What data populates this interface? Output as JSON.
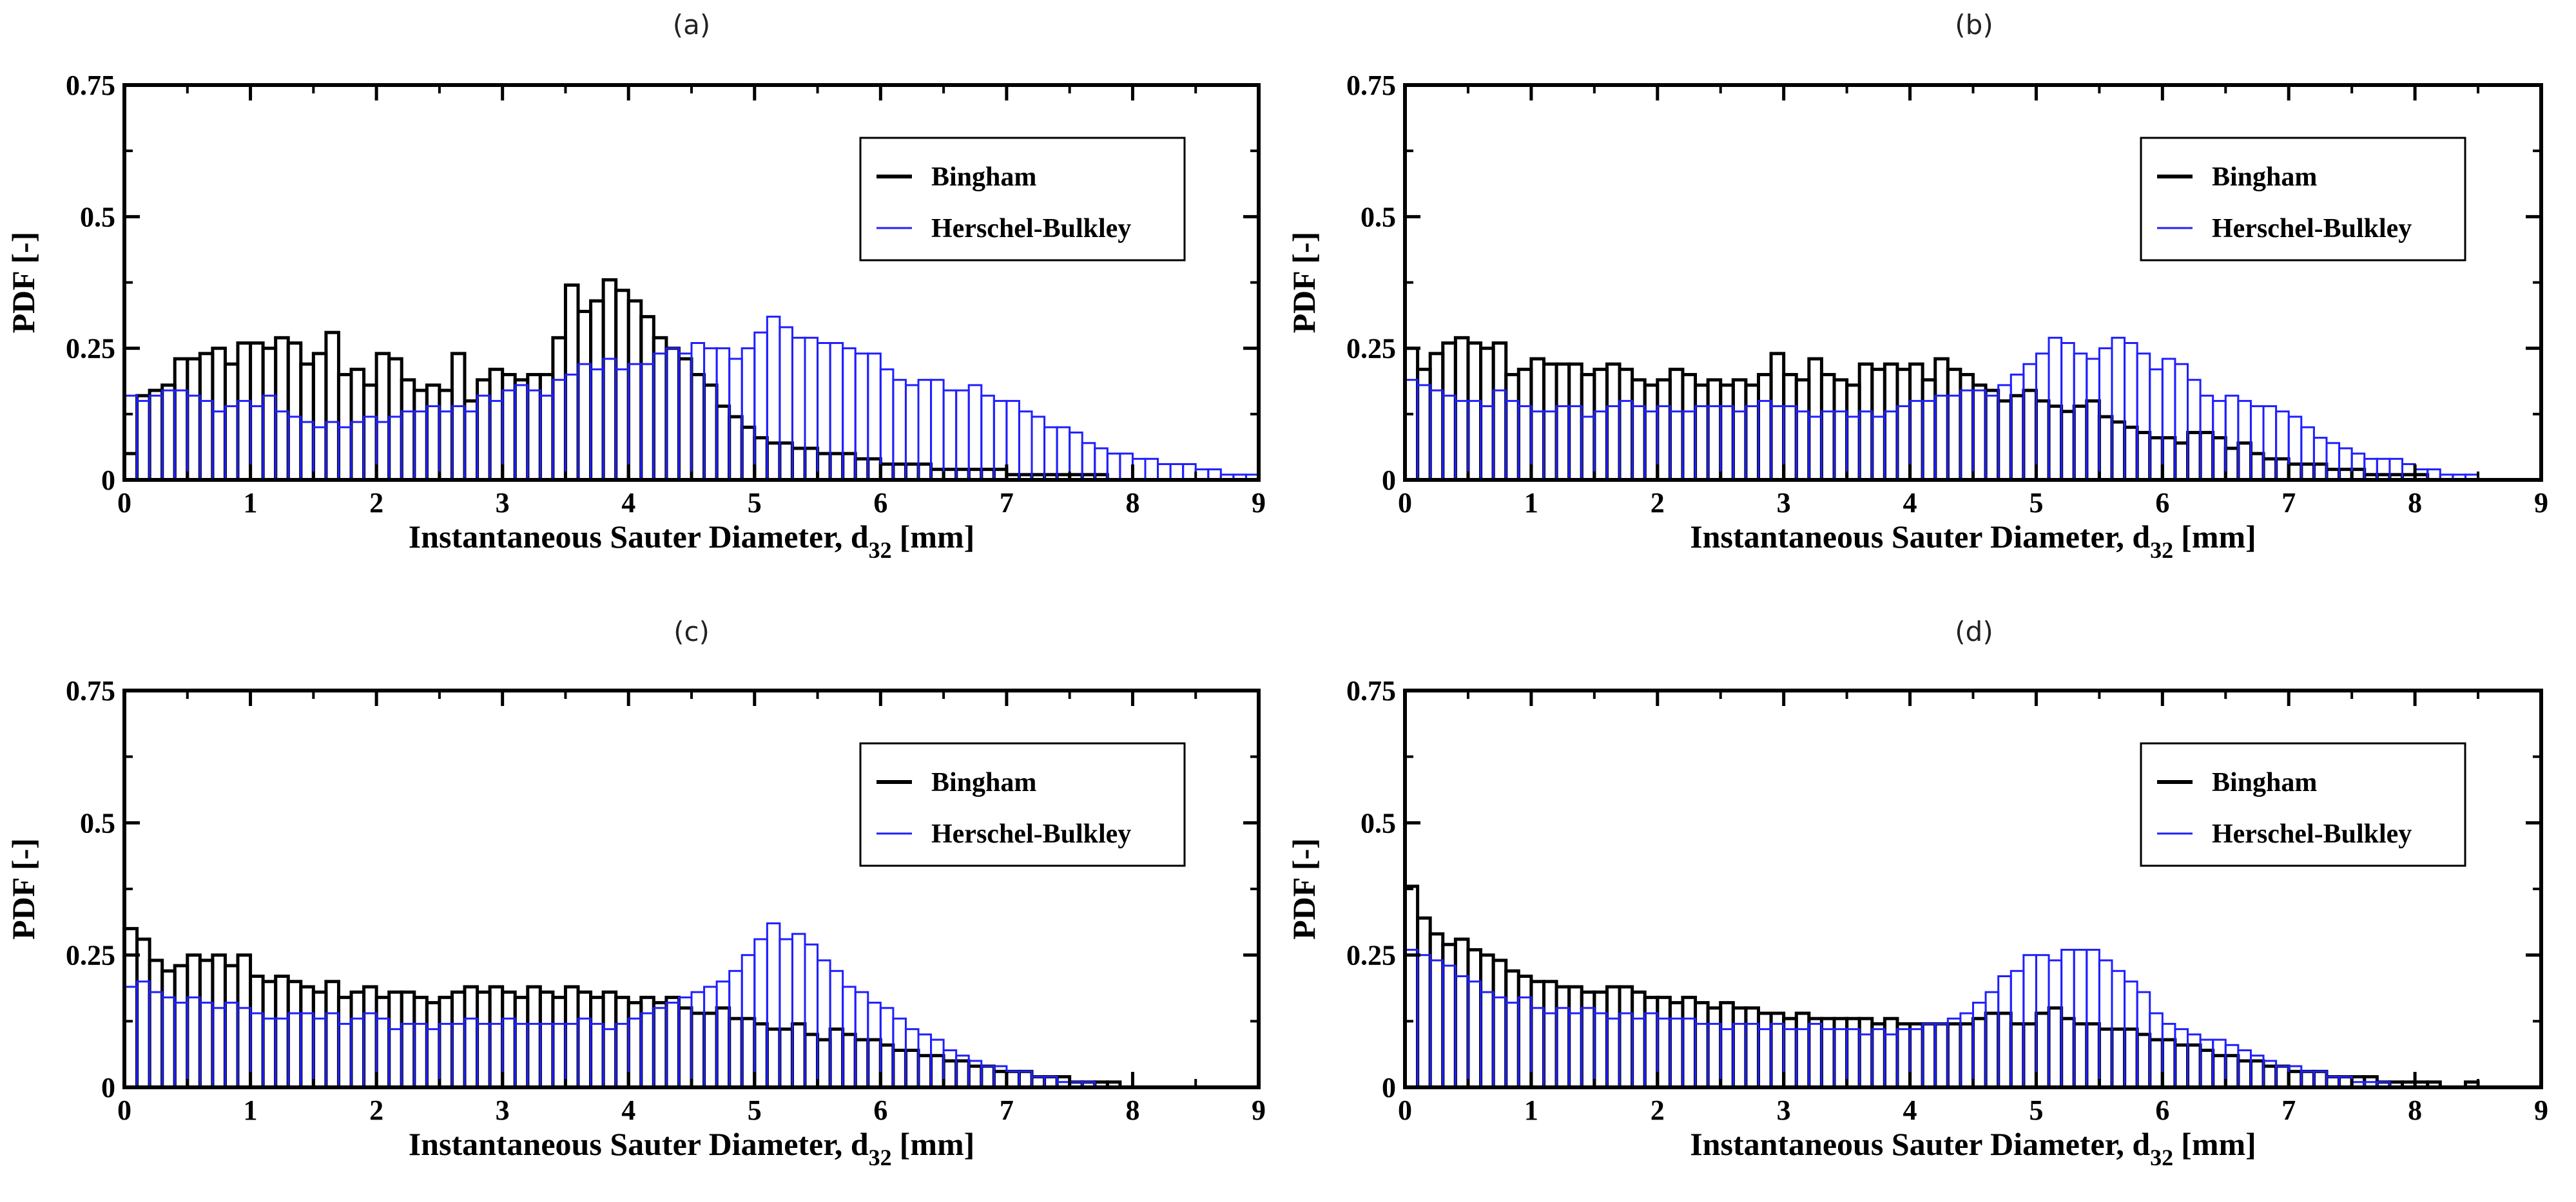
{
  "figure": {
    "colors": {
      "bingham": "#000000",
      "herschel": "#1f1fff",
      "frame": "#000000",
      "background": "#ffffff"
    }
  },
  "chart_data": [
    {
      "type": "bar",
      "panel_label": "(a)",
      "xlabel_main": "Instantaneous Sauter Diameter, d",
      "xlabel_sub": "32",
      "xlabel_unit": "[mm]",
      "ylabel": "PDF [-]",
      "xlim": [
        0,
        9
      ],
      "ylim": [
        0,
        0.75
      ],
      "xticks": [
        "0",
        "1",
        "2",
        "3",
        "4",
        "5",
        "6",
        "7",
        "8",
        "9"
      ],
      "yticks": [
        {
          "value": 0,
          "label": "0"
        },
        {
          "value": 0.25,
          "label": "0.25"
        },
        {
          "value": 0.5,
          "label": "0.5"
        },
        {
          "value": 0.75,
          "label": "0.75"
        }
      ],
      "legend_position": "top-right",
      "bin_width": 0.1,
      "x_start": 0,
      "series": [
        {
          "name": "Bingham",
          "color": "#000000",
          "values": [
            0.05,
            0.16,
            0.17,
            0.18,
            0.23,
            0.23,
            0.24,
            0.25,
            0.22,
            0.26,
            0.26,
            0.25,
            0.27,
            0.26,
            0.22,
            0.24,
            0.28,
            0.2,
            0.21,
            0.18,
            0.24,
            0.23,
            0.19,
            0.17,
            0.18,
            0.17,
            0.24,
            0.15,
            0.19,
            0.21,
            0.2,
            0.19,
            0.2,
            0.2,
            0.27,
            0.37,
            0.32,
            0.34,
            0.38,
            0.36,
            0.34,
            0.31,
            0.27,
            0.25,
            0.23,
            0.2,
            0.18,
            0.14,
            0.12,
            0.1,
            0.08,
            0.07,
            0.07,
            0.06,
            0.06,
            0.05,
            0.05,
            0.05,
            0.04,
            0.04,
            0.03,
            0.03,
            0.03,
            0.03,
            0.02,
            0.02,
            0.02,
            0.02,
            0.02,
            0.02,
            0.01,
            0.01,
            0.01,
            0.01,
            0.01,
            0.01,
            0.01,
            0.01,
            0.0,
            0.0,
            0.0,
            0.0,
            0.0,
            0.0,
            0.0,
            0.0,
            0.0,
            0.0,
            0.0,
            0.0
          ]
        },
        {
          "name": "Herschel-Bulkley",
          "color": "#1f1fff",
          "values": [
            0.16,
            0.15,
            0.16,
            0.17,
            0.17,
            0.16,
            0.15,
            0.13,
            0.14,
            0.15,
            0.14,
            0.16,
            0.13,
            0.12,
            0.11,
            0.1,
            0.11,
            0.1,
            0.11,
            0.12,
            0.11,
            0.12,
            0.13,
            0.13,
            0.14,
            0.13,
            0.14,
            0.13,
            0.16,
            0.15,
            0.17,
            0.18,
            0.17,
            0.16,
            0.19,
            0.2,
            0.22,
            0.21,
            0.23,
            0.21,
            0.22,
            0.22,
            0.24,
            0.25,
            0.24,
            0.26,
            0.25,
            0.25,
            0.23,
            0.25,
            0.28,
            0.31,
            0.29,
            0.27,
            0.27,
            0.26,
            0.26,
            0.25,
            0.24,
            0.24,
            0.21,
            0.19,
            0.18,
            0.19,
            0.19,
            0.17,
            0.17,
            0.18,
            0.16,
            0.15,
            0.15,
            0.13,
            0.12,
            0.1,
            0.1,
            0.09,
            0.07,
            0.06,
            0.05,
            0.05,
            0.04,
            0.04,
            0.03,
            0.03,
            0.03,
            0.02,
            0.02,
            0.01,
            0.01,
            0.01
          ]
        }
      ]
    },
    {
      "type": "bar",
      "panel_label": "(b)",
      "xlabel_main": "Instantaneous Sauter Diameter, d",
      "xlabel_sub": "32",
      "xlabel_unit": "[mm]",
      "ylabel": "PDF [-]",
      "xlim": [
        0,
        9
      ],
      "ylim": [
        0,
        0.75
      ],
      "xticks": [
        "0",
        "1",
        "2",
        "3",
        "4",
        "5",
        "6",
        "7",
        "8",
        "9"
      ],
      "yticks": [
        {
          "value": 0,
          "label": "0"
        },
        {
          "value": 0.25,
          "label": "0.25"
        },
        {
          "value": 0.5,
          "label": "0.5"
        },
        {
          "value": 0.75,
          "label": "0.75"
        }
      ],
      "legend_position": "top-right",
      "bin_width": 0.1,
      "x_start": 0,
      "series": [
        {
          "name": "Bingham",
          "color": "#000000",
          "values": [
            0.25,
            0.21,
            0.24,
            0.26,
            0.27,
            0.26,
            0.25,
            0.26,
            0.2,
            0.21,
            0.23,
            0.22,
            0.22,
            0.22,
            0.2,
            0.21,
            0.22,
            0.21,
            0.19,
            0.18,
            0.19,
            0.21,
            0.2,
            0.18,
            0.19,
            0.18,
            0.19,
            0.18,
            0.2,
            0.24,
            0.2,
            0.19,
            0.23,
            0.2,
            0.19,
            0.18,
            0.22,
            0.21,
            0.22,
            0.21,
            0.22,
            0.19,
            0.23,
            0.21,
            0.2,
            0.18,
            0.17,
            0.15,
            0.16,
            0.17,
            0.15,
            0.14,
            0.13,
            0.14,
            0.15,
            0.12,
            0.11,
            0.1,
            0.09,
            0.08,
            0.08,
            0.07,
            0.09,
            0.09,
            0.08,
            0.06,
            0.07,
            0.05,
            0.04,
            0.04,
            0.03,
            0.03,
            0.03,
            0.02,
            0.02,
            0.02,
            0.01,
            0.01,
            0.01,
            0.01,
            0.01,
            0.0,
            0.0,
            0.0,
            0.0,
            0.0,
            0.0,
            0.0,
            0.0,
            0.0
          ]
        },
        {
          "name": "Herschel-Bulkley",
          "color": "#1f1fff",
          "values": [
            0.19,
            0.18,
            0.17,
            0.16,
            0.15,
            0.15,
            0.14,
            0.17,
            0.15,
            0.14,
            0.13,
            0.13,
            0.14,
            0.14,
            0.12,
            0.13,
            0.14,
            0.15,
            0.14,
            0.13,
            0.14,
            0.13,
            0.13,
            0.14,
            0.14,
            0.14,
            0.13,
            0.14,
            0.15,
            0.14,
            0.14,
            0.13,
            0.12,
            0.13,
            0.13,
            0.12,
            0.13,
            0.12,
            0.13,
            0.14,
            0.15,
            0.15,
            0.16,
            0.16,
            0.17,
            0.17,
            0.16,
            0.18,
            0.2,
            0.22,
            0.24,
            0.27,
            0.26,
            0.24,
            0.23,
            0.25,
            0.27,
            0.26,
            0.24,
            0.21,
            0.23,
            0.22,
            0.19,
            0.16,
            0.15,
            0.16,
            0.15,
            0.14,
            0.14,
            0.13,
            0.12,
            0.1,
            0.08,
            0.07,
            0.06,
            0.05,
            0.04,
            0.04,
            0.04,
            0.03,
            0.02,
            0.02,
            0.01,
            0.01,
            0.01,
            0.0,
            0.0,
            0.0,
            0.0,
            0.0
          ]
        }
      ]
    },
    {
      "type": "bar",
      "panel_label": "(c)",
      "xlabel_main": "Instantaneous Sauter Diameter, d",
      "xlabel_sub": "32",
      "xlabel_unit": "[mm]",
      "ylabel": "PDF [-]",
      "xlim": [
        0,
        9
      ],
      "ylim": [
        0,
        0.75
      ],
      "xticks": [
        "0",
        "1",
        "2",
        "3",
        "4",
        "5",
        "6",
        "7",
        "8",
        "9"
      ],
      "yticks": [
        {
          "value": 0,
          "label": "0"
        },
        {
          "value": 0.25,
          "label": "0.25"
        },
        {
          "value": 0.5,
          "label": "0.5"
        },
        {
          "value": 0.75,
          "label": "0.75"
        }
      ],
      "legend_position": "top-right",
      "bin_width": 0.1,
      "x_start": 0,
      "series": [
        {
          "name": "Bingham",
          "color": "#000000",
          "values": [
            0.3,
            0.28,
            0.24,
            0.22,
            0.23,
            0.25,
            0.24,
            0.25,
            0.23,
            0.25,
            0.21,
            0.2,
            0.21,
            0.2,
            0.19,
            0.18,
            0.2,
            0.17,
            0.18,
            0.19,
            0.17,
            0.18,
            0.18,
            0.17,
            0.16,
            0.17,
            0.18,
            0.19,
            0.18,
            0.19,
            0.18,
            0.17,
            0.19,
            0.18,
            0.17,
            0.19,
            0.18,
            0.17,
            0.18,
            0.17,
            0.16,
            0.17,
            0.16,
            0.17,
            0.15,
            0.14,
            0.14,
            0.15,
            0.13,
            0.13,
            0.12,
            0.11,
            0.11,
            0.12,
            0.1,
            0.09,
            0.11,
            0.1,
            0.09,
            0.09,
            0.08,
            0.07,
            0.07,
            0.06,
            0.06,
            0.05,
            0.05,
            0.04,
            0.04,
            0.03,
            0.03,
            0.03,
            0.02,
            0.02,
            0.02,
            0.01,
            0.01,
            0.01,
            0.01,
            0.0,
            0.0,
            0.0,
            0.0,
            0.0,
            0.0,
            0.0,
            0.0,
            0.0,
            0.0,
            0.0
          ]
        },
        {
          "name": "Herschel-Bulkley",
          "color": "#1f1fff",
          "values": [
            0.19,
            0.2,
            0.18,
            0.17,
            0.16,
            0.17,
            0.16,
            0.15,
            0.16,
            0.15,
            0.14,
            0.13,
            0.13,
            0.14,
            0.14,
            0.13,
            0.14,
            0.12,
            0.13,
            0.14,
            0.13,
            0.11,
            0.12,
            0.12,
            0.11,
            0.12,
            0.12,
            0.13,
            0.12,
            0.12,
            0.13,
            0.12,
            0.12,
            0.12,
            0.12,
            0.12,
            0.13,
            0.12,
            0.11,
            0.12,
            0.13,
            0.14,
            0.15,
            0.16,
            0.17,
            0.18,
            0.19,
            0.2,
            0.22,
            0.25,
            0.28,
            0.31,
            0.28,
            0.29,
            0.27,
            0.24,
            0.22,
            0.19,
            0.18,
            0.16,
            0.15,
            0.13,
            0.11,
            0.1,
            0.09,
            0.07,
            0.06,
            0.05,
            0.04,
            0.04,
            0.03,
            0.03,
            0.02,
            0.02,
            0.01,
            0.01,
            0.01,
            0.0,
            0.0,
            0.0,
            0.0,
            0.0,
            0.0,
            0.0,
            0.0,
            0.0,
            0.0,
            0.0,
            0.0,
            0.0
          ]
        }
      ]
    },
    {
      "type": "bar",
      "panel_label": "(d)",
      "xlabel_main": "Instantaneous Sauter Diameter, d",
      "xlabel_sub": "32",
      "xlabel_unit": "[mm]",
      "ylabel": "PDF [-]",
      "xlim": [
        0,
        9
      ],
      "ylim": [
        0,
        0.75
      ],
      "xticks": [
        "0",
        "1",
        "2",
        "3",
        "4",
        "5",
        "6",
        "7",
        "8",
        "9"
      ],
      "yticks": [
        {
          "value": 0,
          "label": "0"
        },
        {
          "value": 0.25,
          "label": "0.25"
        },
        {
          "value": 0.5,
          "label": "0.5"
        },
        {
          "value": 0.75,
          "label": "0.75"
        }
      ],
      "legend_position": "top-right",
      "bin_width": 0.1,
      "x_start": 0,
      "series": [
        {
          "name": "Bingham",
          "color": "#000000",
          "values": [
            0.38,
            0.32,
            0.29,
            0.27,
            0.28,
            0.26,
            0.25,
            0.24,
            0.22,
            0.21,
            0.2,
            0.2,
            0.19,
            0.19,
            0.18,
            0.18,
            0.19,
            0.19,
            0.18,
            0.17,
            0.17,
            0.16,
            0.17,
            0.16,
            0.15,
            0.16,
            0.15,
            0.15,
            0.14,
            0.14,
            0.13,
            0.14,
            0.13,
            0.13,
            0.13,
            0.13,
            0.13,
            0.12,
            0.13,
            0.12,
            0.12,
            0.12,
            0.12,
            0.12,
            0.12,
            0.13,
            0.14,
            0.14,
            0.12,
            0.12,
            0.14,
            0.15,
            0.13,
            0.12,
            0.12,
            0.11,
            0.11,
            0.11,
            0.1,
            0.09,
            0.09,
            0.08,
            0.08,
            0.07,
            0.06,
            0.06,
            0.05,
            0.05,
            0.04,
            0.04,
            0.03,
            0.03,
            0.03,
            0.02,
            0.02,
            0.02,
            0.02,
            0.01,
            0.01,
            0.01,
            0.01,
            0.01,
            0.0,
            0.0,
            0.01,
            0.0,
            0.0,
            0.0,
            0.0,
            0.0
          ]
        },
        {
          "name": "Herschel-Bulkley",
          "color": "#1f1fff",
          "values": [
            0.26,
            0.25,
            0.24,
            0.23,
            0.21,
            0.2,
            0.18,
            0.17,
            0.16,
            0.17,
            0.15,
            0.14,
            0.15,
            0.14,
            0.15,
            0.14,
            0.13,
            0.14,
            0.13,
            0.14,
            0.13,
            0.13,
            0.13,
            0.12,
            0.12,
            0.11,
            0.12,
            0.12,
            0.11,
            0.12,
            0.11,
            0.11,
            0.12,
            0.11,
            0.11,
            0.11,
            0.1,
            0.11,
            0.1,
            0.11,
            0.11,
            0.12,
            0.12,
            0.13,
            0.14,
            0.16,
            0.18,
            0.21,
            0.22,
            0.25,
            0.25,
            0.24,
            0.26,
            0.26,
            0.26,
            0.24,
            0.22,
            0.2,
            0.18,
            0.14,
            0.12,
            0.11,
            0.1,
            0.09,
            0.09,
            0.08,
            0.07,
            0.06,
            0.05,
            0.04,
            0.04,
            0.03,
            0.03,
            0.02,
            0.02,
            0.01,
            0.01,
            0.01,
            0.0,
            0.0,
            0.0,
            0.0,
            0.0,
            0.0,
            0.0,
            0.0,
            0.0,
            0.0,
            0.0,
            0.0
          ]
        }
      ]
    }
  ]
}
